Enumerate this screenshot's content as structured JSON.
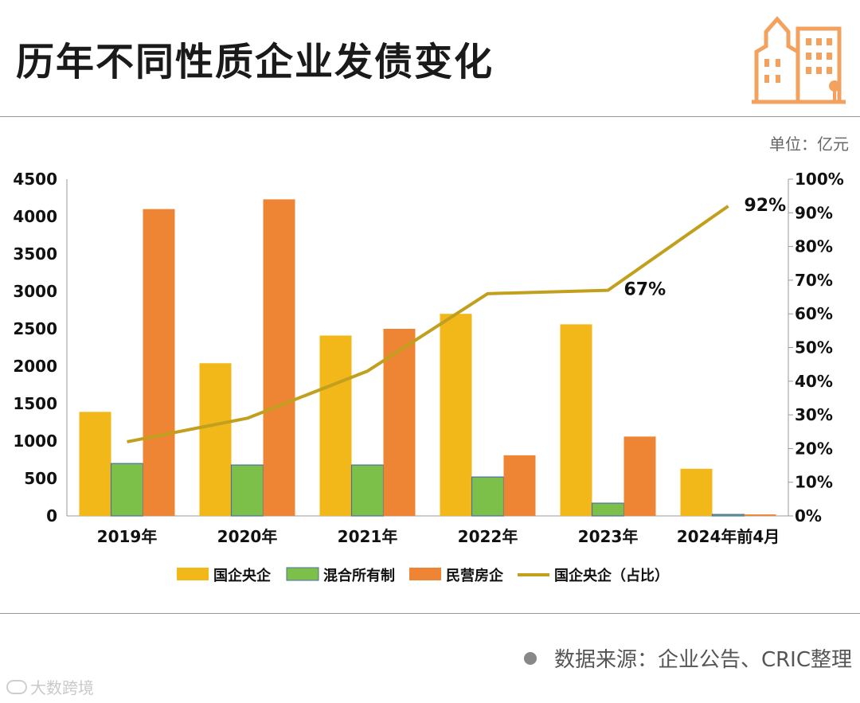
{
  "header": {
    "title": "历年不同性质企业发债变化",
    "unit": "单位：亿元"
  },
  "footer": {
    "source": "数据来源：企业公告、CRIC整理",
    "watermark": "大数跨境"
  },
  "colors": {
    "soe": "#F2B81A",
    "mixed": "#7CC04A",
    "private": "#EE8535",
    "share_line": "#C2A01E",
    "logo": "#F2A25E"
  },
  "chart_data": {
    "type": "bar",
    "categories": [
      "2019年",
      "2020年",
      "2021年",
      "2022年",
      "2023年",
      "2024年前4月"
    ],
    "series": [
      {
        "name": "国企央企",
        "kind": "bar",
        "axis": "left",
        "values": [
          1390,
          2040,
          2410,
          2700,
          2560,
          630
        ]
      },
      {
        "name": "混合所有制",
        "kind": "bar",
        "axis": "left",
        "values": [
          700,
          680,
          680,
          520,
          170,
          20
        ]
      },
      {
        "name": "民营房企",
        "kind": "bar",
        "axis": "left",
        "values": [
          4100,
          4230,
          2500,
          810,
          1060,
          20
        ]
      },
      {
        "name": "国企央企（占比）",
        "kind": "line",
        "axis": "right",
        "values": [
          22,
          29,
          43,
          66,
          67,
          92
        ]
      }
    ],
    "y_left": {
      "min": 0,
      "max": 4500,
      "ticks": [
        "0",
        "500",
        "1000",
        "1500",
        "2000",
        "2500",
        "3000",
        "3500",
        "4000",
        "4500"
      ]
    },
    "y_right": {
      "min": 0,
      "max": 100,
      "ticks": [
        "0%",
        "10%",
        "20%",
        "30%",
        "40%",
        "50%",
        "60%",
        "70%",
        "80%",
        "90%",
        "100%"
      ]
    },
    "annotations": [
      {
        "category_index": 4,
        "text": "67%"
      },
      {
        "category_index": 5,
        "text": "92%"
      }
    ],
    "legend_position": "bottom",
    "grid": false
  }
}
